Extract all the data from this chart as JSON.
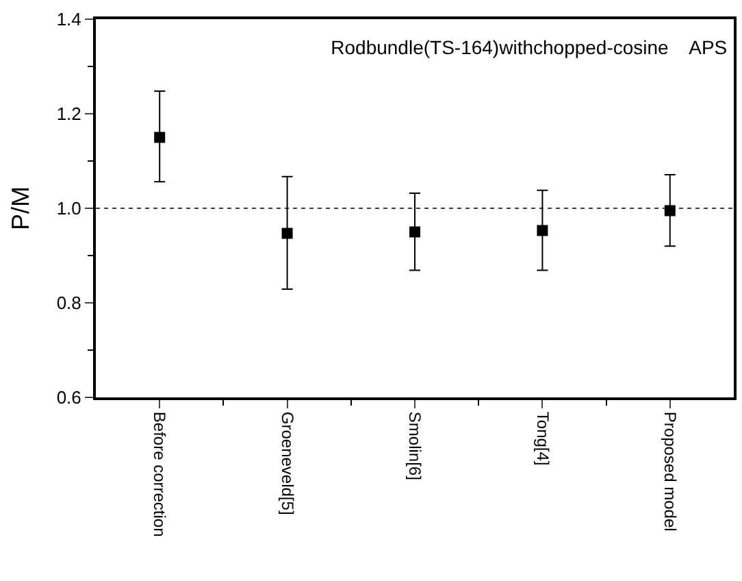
{
  "chart_data": {
    "type": "scatter",
    "title": "Rodbundle(TS-164)withchopped-cosine    APS",
    "ylabel": "P/M",
    "categories": [
      "Before correction",
      "Groeneveld[5]",
      "Smolin[6]",
      "Tong[4]",
      "Proposed model"
    ],
    "series": [
      {
        "color": "#000000",
        "values": [
          1.15,
          0.947,
          0.95,
          0.953,
          0.995
        ],
        "errors": [
          [
            1.056,
            1.248
          ],
          [
            0.829,
            1.067
          ],
          [
            0.869,
            1.032
          ],
          [
            0.869,
            1.038
          ],
          [
            0.92,
            1.071
          ]
        ]
      }
    ],
    "ylim": [
      0.6,
      1.4
    ],
    "yticks": [
      0.6,
      0.8,
      {
        "value": 1,
        "label": "1.0"
      },
      1.2,
      1.4
    ],
    "ref_lines": [
      {
        "axis": "y",
        "value": 1.0,
        "line_style": "dotted",
        "color": "#000000"
      }
    ],
    "marker": "square"
  }
}
